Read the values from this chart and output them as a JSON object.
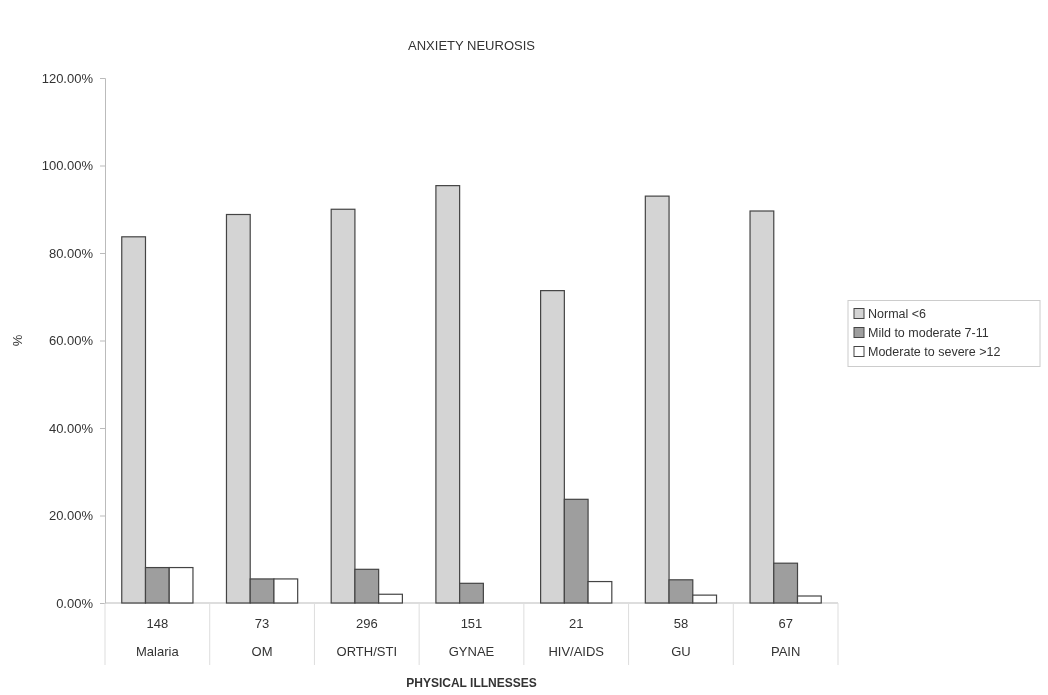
{
  "chart_data": {
    "type": "bar",
    "title": "ANXIETY NEUROSIS",
    "xlabel": "PHYSICAL ILLNESSES",
    "ylabel": "%",
    "categories": [
      "148\nMalaria",
      "73\nOM",
      "296\nORTH/STI",
      "151\nGYNAE",
      "21\nHIV/AIDS",
      "58\nGU",
      "67\nPAIN"
    ],
    "series": [
      {
        "name": "Normal <6",
        "color": "#d4d4d4",
        "values": [
          83.7,
          88.8,
          90.0,
          95.4,
          71.4,
          93.0,
          89.6
        ]
      },
      {
        "name": "Mild to moderate 7-11",
        "color": "#9e9e9e",
        "values": [
          8.1,
          5.5,
          7.7,
          4.5,
          23.7,
          5.3,
          9.1
        ]
      },
      {
        "name": "Moderate to severe >12",
        "color": "#ffffff",
        "values": [
          8.1,
          5.5,
          2.0,
          0,
          4.9,
          1.8,
          1.6
        ]
      }
    ],
    "ylim": [
      0,
      120
    ],
    "yticks": [
      {
        "value": 0,
        "label": "0.00%"
      },
      {
        "value": 20,
        "label": "20.00%"
      },
      {
        "value": 40,
        "label": "40.00%"
      },
      {
        "value": 60,
        "label": "60.00%"
      },
      {
        "value": 80,
        "label": "80.00%"
      },
      {
        "value": 100,
        "label": "100.00%"
      },
      {
        "value": 120,
        "label": "120.00%"
      }
    ],
    "legend": "right"
  }
}
